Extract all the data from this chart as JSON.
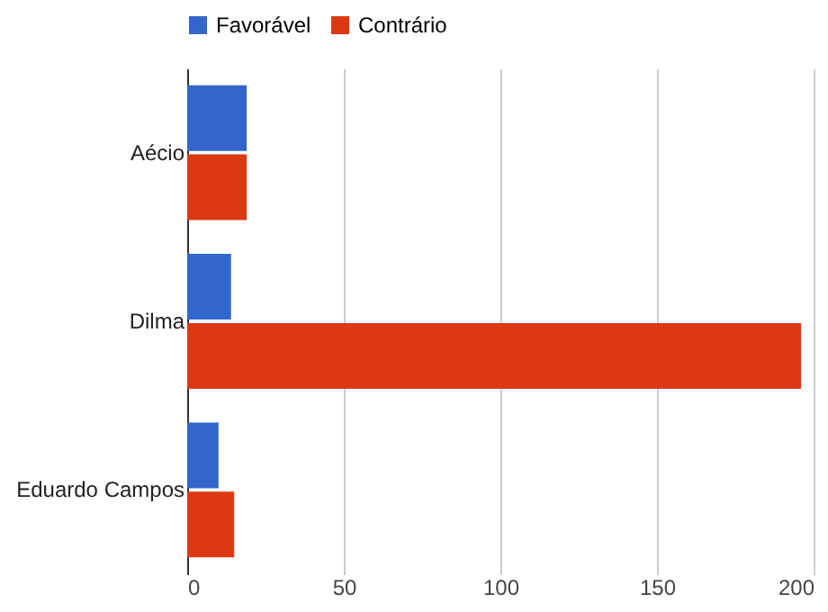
{
  "chart_data": {
    "type": "bar",
    "orientation": "horizontal",
    "categories": [
      "Aécio",
      "Dilma",
      "Eduardo Campos"
    ],
    "series": [
      {
        "name": "Favorável",
        "color": "#3366cc",
        "values": [
          19,
          14,
          10
        ]
      },
      {
        "name": "Contrário",
        "color": "#dc3912",
        "values": [
          19,
          196,
          15
        ]
      }
    ],
    "xlim": [
      0,
      200
    ],
    "xticks": [
      0,
      50,
      100,
      150,
      200
    ],
    "grid": "x",
    "legend": "top"
  }
}
